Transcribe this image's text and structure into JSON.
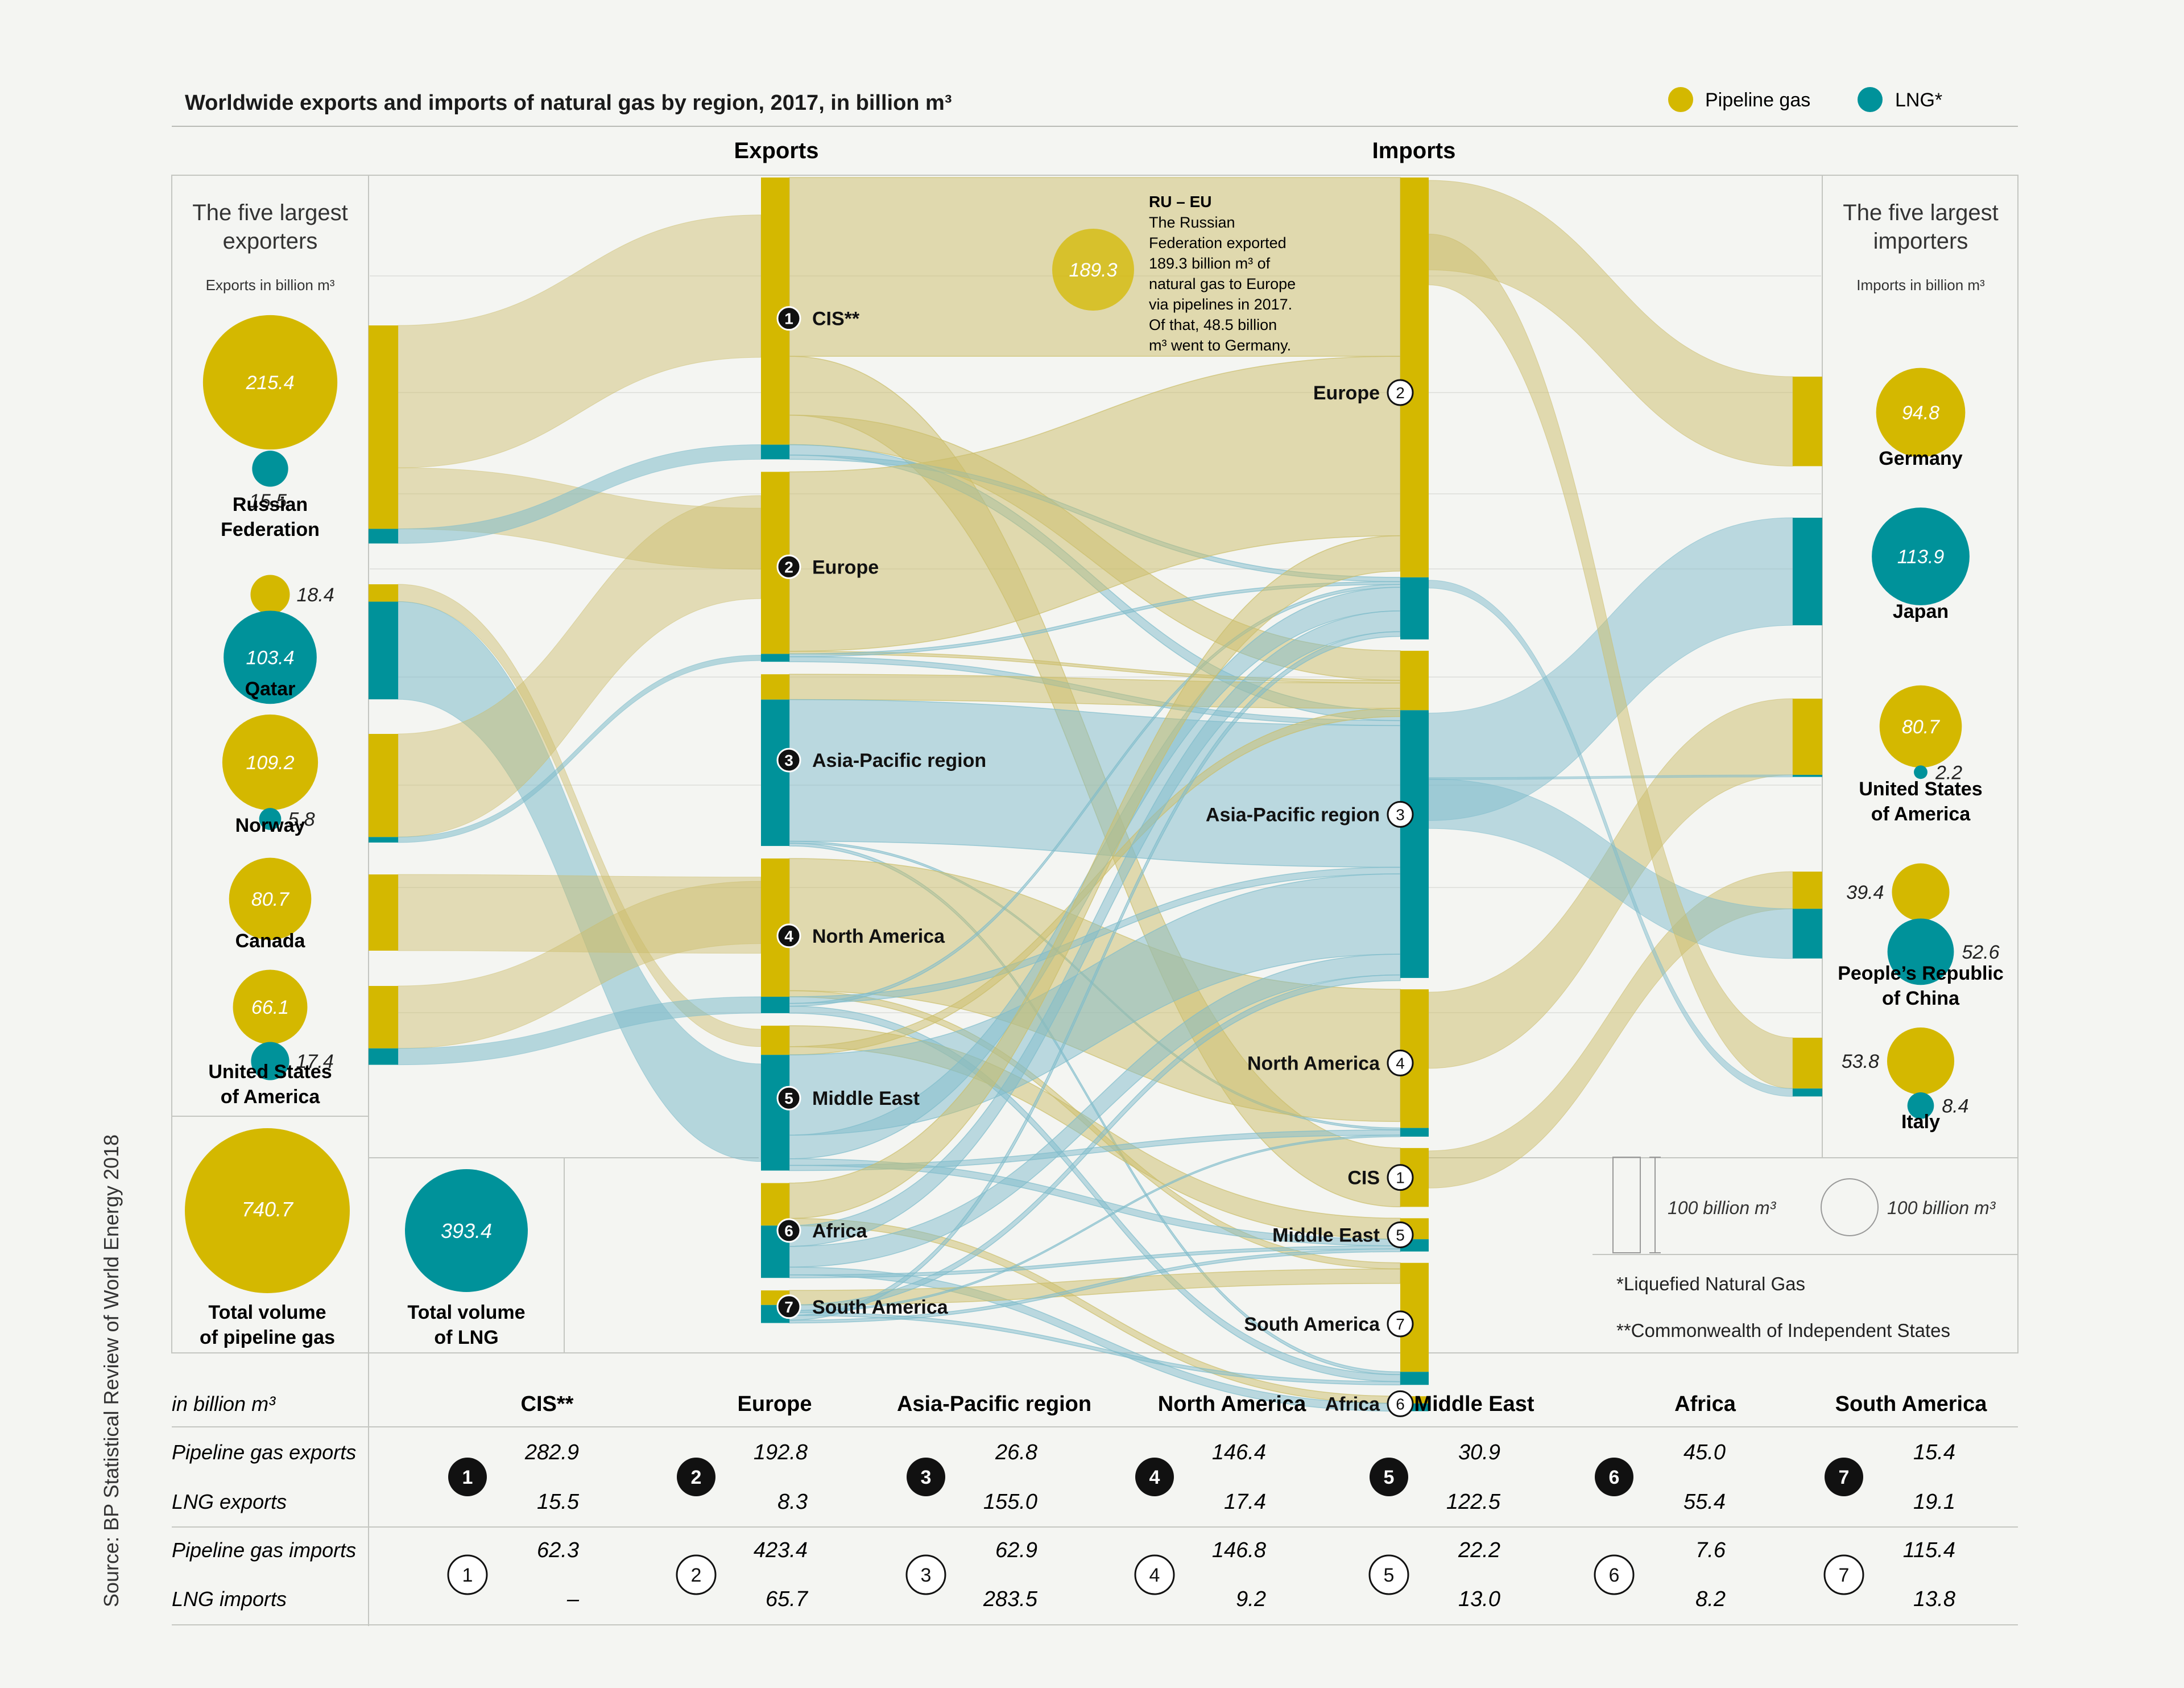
{
  "title": "Worldwide exports and imports of natural gas by region, 2017, in billion m³",
  "legend": [
    {
      "label": "Pipeline gas",
      "color": "#d4b800"
    },
    {
      "label": "LNG*",
      "color": "#00929a"
    }
  ],
  "headings": {
    "exports": "Exports",
    "imports": "Imports"
  },
  "left_panel": {
    "title_line1": "The five largest",
    "title_line2": "exporters",
    "unit": "Exports in billion m³",
    "countries": [
      {
        "name_line1": "Russian",
        "name_line2": "Federation",
        "pipeline": "215.4",
        "lng": "15.5"
      },
      {
        "name_line1": "Qatar",
        "name_line2": "",
        "pipeline": "18.4",
        "lng": "103.4"
      },
      {
        "name_line1": "Norway",
        "name_line2": "",
        "pipeline": "109.2",
        "lng": "5.8"
      },
      {
        "name_line1": "Canada",
        "name_line2": "",
        "pipeline": "80.7",
        "lng": ""
      },
      {
        "name_line1": "United States",
        "name_line2": "of America",
        "pipeline": "66.1",
        "lng": "17.4"
      }
    ],
    "total_pipeline": {
      "value": "740.7",
      "label_line1": "Total volume",
      "label_line2": "of pipeline gas"
    },
    "total_lng": {
      "value": "393.4",
      "label_line1": "Total volume",
      "label_line2": "of LNG"
    }
  },
  "right_panel": {
    "title_line1": "The five largest",
    "title_line2": "importers",
    "unit": "Imports in billion m³",
    "countries": [
      {
        "name_line1": "Germany",
        "name_line2": "",
        "pipeline": "94.8",
        "lng": ""
      },
      {
        "name_line1": "Japan",
        "name_line2": "",
        "pipeline": "",
        "lng": "113.9"
      },
      {
        "name_line1": "United States",
        "name_line2": "of America",
        "pipeline": "80.7",
        "lng": "2.2"
      },
      {
        "name_line1": "People’s Republic",
        "name_line2": "of China",
        "pipeline": "39.4",
        "lng": "52.6"
      },
      {
        "name_line1": "Italy",
        "name_line2": "",
        "pipeline": "53.8",
        "lng": "8.4"
      }
    ]
  },
  "annotation": {
    "title": "RU – EU",
    "value": "189.3",
    "lines": [
      "The Russian",
      "Federation exported",
      "189.3 billion m³ of",
      "natural gas to Europe",
      "via pipelines in 2017.",
      "Of that, 48.5 billion",
      "m³ went to Germany."
    ]
  },
  "scale": {
    "bar_label": "100 billion m³",
    "circle_label": "100 billion m³"
  },
  "footnotes": [
    "*Liquefied Natural Gas",
    "**Commonwealth of Independent States"
  ],
  "source": "Source: BP Statistical Review of World Energy 2018",
  "table": {
    "unit": "in billion m³",
    "row_labels": [
      "Pipeline gas exports",
      "LNG exports",
      "Pipeline gas imports",
      "LNG imports"
    ]
  },
  "colors": {
    "pipeline": "#d4b800",
    "lng": "#00929a",
    "pipeline_flow": "#cbbd6a",
    "lng_flow": "#7fbccb"
  },
  "chart_data": {
    "type": "sankey",
    "unit": "billion m³",
    "regions": [
      {
        "num": "1",
        "export_label": "CIS**",
        "import_label": "CIS",
        "table_label": "CIS**",
        "pipeline_exports": 282.9,
        "lng_exports": 15.5,
        "pipeline_imports": 62.3,
        "lng_imports": 0,
        "lng_imports_text": "–"
      },
      {
        "num": "2",
        "export_label": "Europe",
        "import_label": "Europe",
        "table_label": "Europe",
        "pipeline_exports": 192.8,
        "lng_exports": 8.3,
        "pipeline_imports": 423.4,
        "lng_imports": 65.7,
        "lng_imports_text": "65.7"
      },
      {
        "num": "3",
        "export_label": "Asia-Pacific region",
        "import_label": "Asia-Pacific region",
        "table_label": "Asia-Pacific region",
        "pipeline_exports": 26.8,
        "lng_exports": 155.0,
        "pipeline_imports": 62.9,
        "lng_imports": 283.5,
        "lng_imports_text": "283.5"
      },
      {
        "num": "4",
        "export_label": "North America",
        "import_label": "North America",
        "table_label": "North America",
        "pipeline_exports": 146.4,
        "lng_exports": 17.4,
        "pipeline_imports": 146.8,
        "lng_imports": 9.2,
        "lng_imports_text": "9.2"
      },
      {
        "num": "5",
        "export_label": "Middle East",
        "import_label": "Middle East",
        "table_label": "Middle East",
        "pipeline_exports": 30.9,
        "lng_exports": 122.5,
        "pipeline_imports": 22.2,
        "lng_imports": 13.0,
        "lng_imports_text": "13.0"
      },
      {
        "num": "6",
        "export_label": "Africa",
        "import_label": "Africa",
        "table_label": "Africa",
        "pipeline_exports": 45.0,
        "lng_exports": 55.4,
        "pipeline_imports": 7.6,
        "lng_imports": 8.2,
        "lng_imports_text": "8.2"
      },
      {
        "num": "7",
        "export_label": "South America",
        "import_label": "South America",
        "table_label": "South America",
        "pipeline_exports": 15.4,
        "lng_exports": 19.1,
        "pipeline_imports": 115.4,
        "lng_imports": 13.8,
        "lng_imports_text": "13.8"
      }
    ],
    "import_order": [
      "2",
      "3",
      "4",
      "1",
      "5",
      "7",
      "6"
    ],
    "top_exporters": [
      {
        "name": "Russian Federation",
        "pipeline": 215.4,
        "lng": 15.5
      },
      {
        "name": "Qatar",
        "pipeline": 18.4,
        "lng": 103.4
      },
      {
        "name": "Norway",
        "pipeline": 109.2,
        "lng": 5.8
      },
      {
        "name": "Canada",
        "pipeline": 80.7,
        "lng": 0
      },
      {
        "name": "United States of America",
        "pipeline": 66.1,
        "lng": 17.4
      }
    ],
    "top_importers": [
      {
        "name": "Germany",
        "pipeline": 94.8,
        "lng": 0
      },
      {
        "name": "Japan",
        "pipeline": 0,
        "lng": 113.9
      },
      {
        "name": "United States of America",
        "pipeline": 80.7,
        "lng": 2.2
      },
      {
        "name": "People’s Republic of China",
        "pipeline": 39.4,
        "lng": 52.6
      },
      {
        "name": "Italy",
        "pipeline": 53.8,
        "lng": 8.4
      }
    ],
    "totals": {
      "pipeline": 740.7,
      "lng": 393.4
    },
    "flows": [
      {
        "from": "1",
        "to": "2",
        "type": "pipeline",
        "value": 189.3
      },
      {
        "from": "1",
        "to": "1",
        "type": "pipeline",
        "value": 62.3
      },
      {
        "from": "1",
        "to": "3",
        "type": "pipeline",
        "value": 31.3
      },
      {
        "from": "1",
        "to": "3",
        "type": "lng",
        "value": 11
      },
      {
        "from": "1",
        "to": "2",
        "type": "lng",
        "value": 4.5
      },
      {
        "from": "2",
        "to": "2",
        "type": "pipeline",
        "value": 190
      },
      {
        "from": "2",
        "to": "3",
        "type": "pipeline",
        "value": 2.8
      },
      {
        "from": "2",
        "to": "2",
        "type": "lng",
        "value": 3
      },
      {
        "from": "2",
        "to": "3",
        "type": "lng",
        "value": 5.3
      },
      {
        "from": "3",
        "to": "3",
        "type": "pipeline",
        "value": 26.8
      },
      {
        "from": "3",
        "to": "3",
        "type": "lng",
        "value": 150
      },
      {
        "from": "3",
        "to": "4",
        "type": "lng",
        "value": 2
      },
      {
        "from": "3",
        "to": "7",
        "type": "lng",
        "value": 3
      },
      {
        "from": "4",
        "to": "4",
        "type": "pipeline",
        "value": 140
      },
      {
        "from": "4",
        "to": "7",
        "type": "pipeline",
        "value": 6.4
      },
      {
        "from": "4",
        "to": "3",
        "type": "lng",
        "value": 7
      },
      {
        "from": "4",
        "to": "2",
        "type": "lng",
        "value": 3
      },
      {
        "from": "4",
        "to": "7",
        "type": "lng",
        "value": 7.4
      },
      {
        "from": "5",
        "to": "5",
        "type": "pipeline",
        "value": 22.2
      },
      {
        "from": "5",
        "to": "3",
        "type": "pipeline",
        "value": 8.7
      },
      {
        "from": "5",
        "to": "3",
        "type": "lng",
        "value": 85
      },
      {
        "from": "5",
        "to": "2",
        "type": "lng",
        "value": 25
      },
      {
        "from": "5",
        "to": "5",
        "type": "lng",
        "value": 7
      },
      {
        "from": "5",
        "to": "4",
        "type": "lng",
        "value": 5.5
      },
      {
        "from": "6",
        "to": "2",
        "type": "pipeline",
        "value": 37.4
      },
      {
        "from": "6",
        "to": "6",
        "type": "pipeline",
        "value": 7.6
      },
      {
        "from": "6",
        "to": "2",
        "type": "lng",
        "value": 22
      },
      {
        "from": "6",
        "to": "3",
        "type": "lng",
        "value": 22
      },
      {
        "from": "6",
        "to": "6",
        "type": "lng",
        "value": 8.2
      },
      {
        "from": "6",
        "to": "5",
        "type": "lng",
        "value": 3.2
      },
      {
        "from": "7",
        "to": "7",
        "type": "pipeline",
        "value": 15.4
      },
      {
        "from": "7",
        "to": "3",
        "type": "lng",
        "value": 6
      },
      {
        "from": "7",
        "to": "4",
        "type": "lng",
        "value": 1.7
      },
      {
        "from": "7",
        "to": "7",
        "type": "lng",
        "value": 3.4
      },
      {
        "from": "7",
        "to": "2",
        "type": "lng",
        "value": 5
      },
      {
        "from": "7",
        "to": "5",
        "type": "lng",
        "value": 3
      }
    ]
  }
}
